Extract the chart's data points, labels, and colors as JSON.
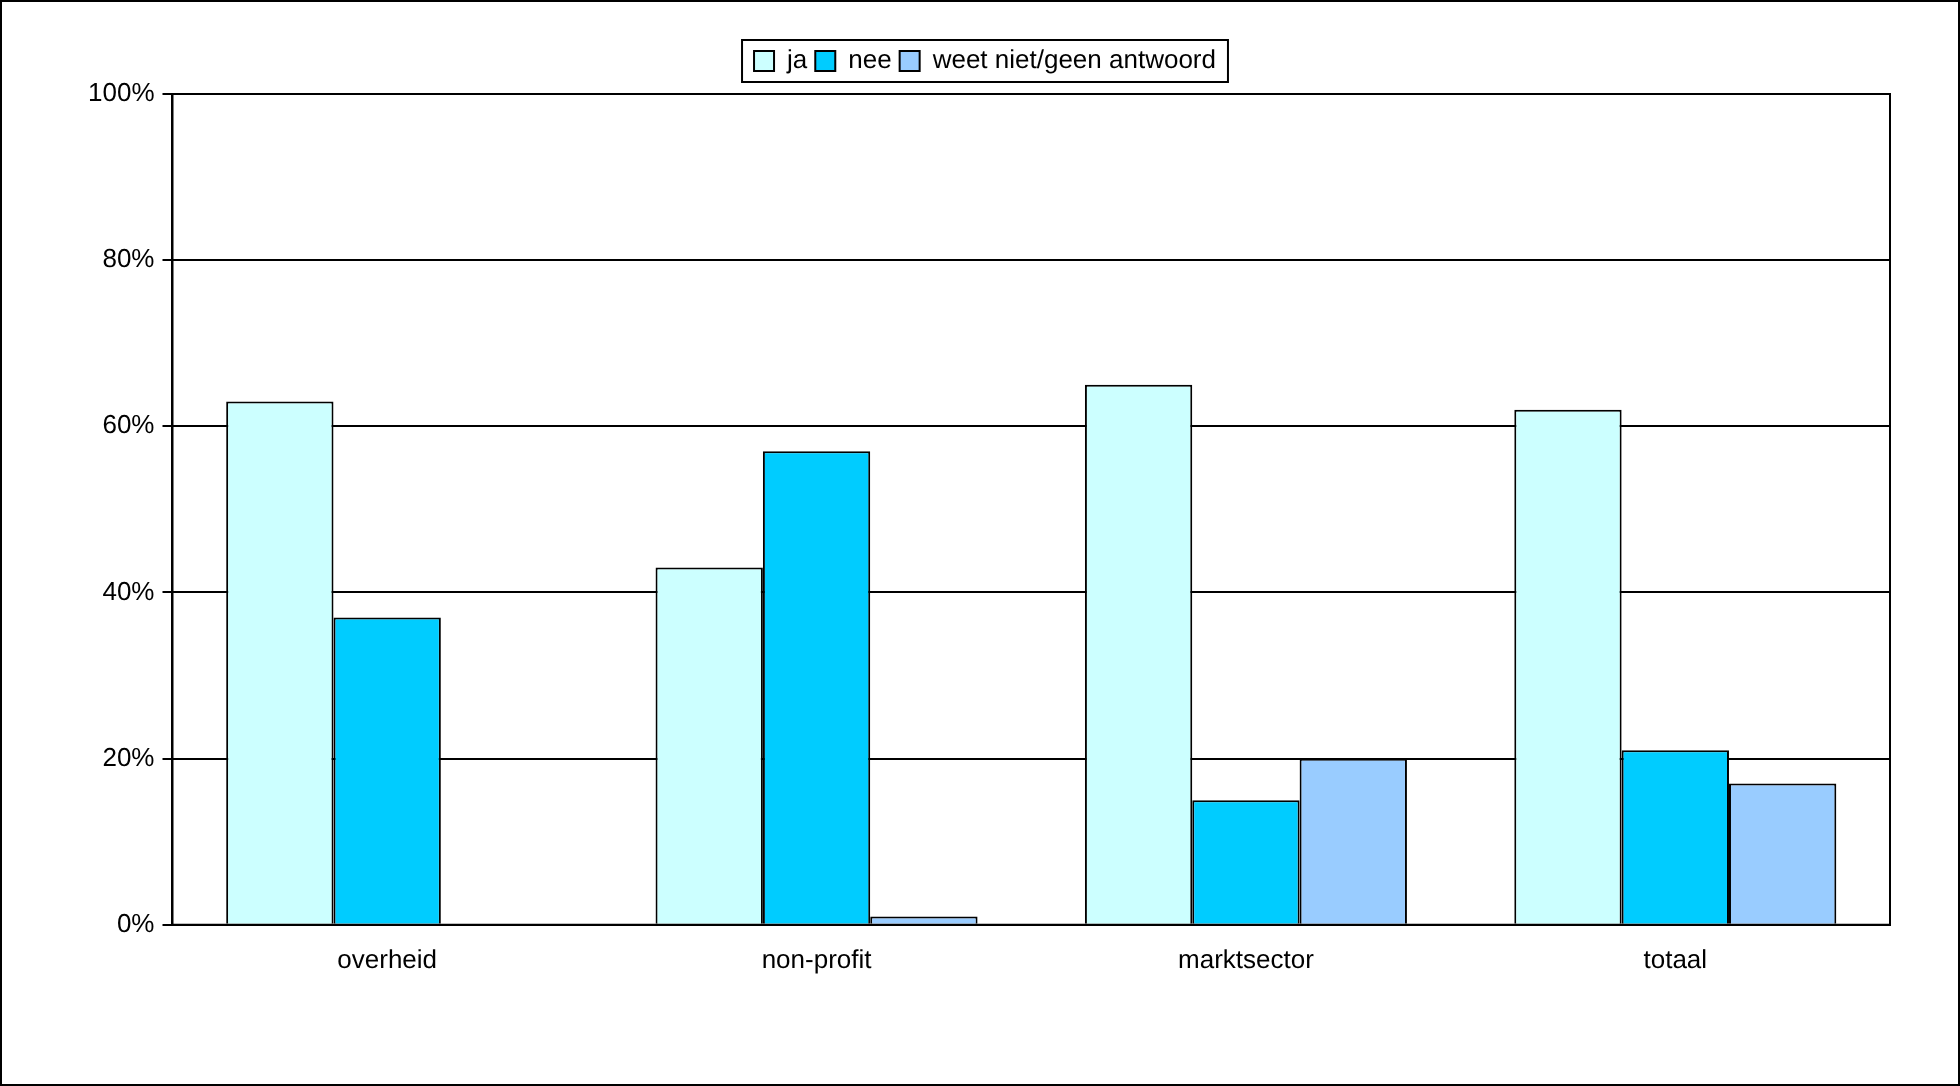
{
  "chart_data": {
    "type": "bar",
    "categories": [
      "overheid",
      "non-profit",
      "marktsector",
      "totaal"
    ],
    "series": [
      {
        "name": "ja",
        "color": "#ccffff",
        "values": [
          63,
          43,
          65,
          62
        ]
      },
      {
        "name": "nee",
        "color": "#00ccff",
        "values": [
          37,
          57,
          15,
          21
        ]
      },
      {
        "name": "weet niet/geen antwoord",
        "color": "#99ccff",
        "values": [
          0,
          1,
          20,
          17
        ]
      }
    ],
    "ylim": [
      0,
      100
    ],
    "yticks": [
      {
        "value": 0,
        "label": "0%"
      },
      {
        "value": 20,
        "label": "20%"
      },
      {
        "value": 40,
        "label": "40%"
      },
      {
        "value": 60,
        "label": "60%"
      },
      {
        "value": 80,
        "label": "80%"
      },
      {
        "value": 100,
        "label": "100%"
      }
    ],
    "grid": "y",
    "legend": "top"
  }
}
